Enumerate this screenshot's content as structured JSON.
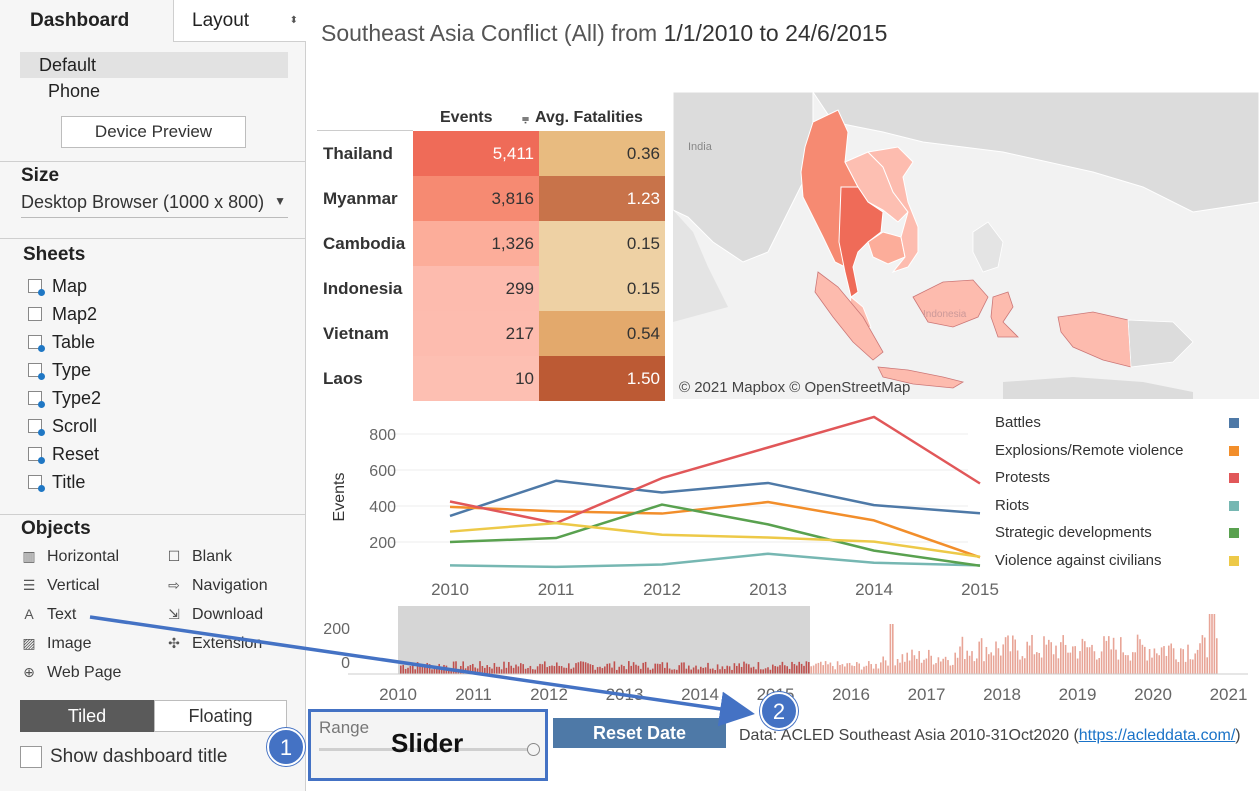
{
  "left_panel": {
    "tabs": {
      "dashboard": "Dashboard",
      "layout": "Layout",
      "layout_spinner": "⬍"
    },
    "devices": {
      "default": "Default",
      "phone": "Phone",
      "preview_button": "Device Preview"
    },
    "size": {
      "title": "Size",
      "value": "Desktop Browser (1000 x 800)",
      "arrow": "▼"
    },
    "sheets": {
      "title": "Sheets",
      "items": [
        "Map",
        "Map2",
        "Table",
        "Type",
        "Type2",
        "Scroll",
        "Reset",
        "Title"
      ]
    },
    "objects": {
      "title": "Objects",
      "items": [
        {
          "label": "Horizontal",
          "icon": "horizontal-container-icon",
          "glyph": "▥"
        },
        {
          "label": "Blank",
          "icon": "blank-icon",
          "glyph": "☐"
        },
        {
          "label": "Vertical",
          "icon": "vertical-container-icon",
          "glyph": "☰"
        },
        {
          "label": "Navigation",
          "icon": "navigation-icon",
          "glyph": "⇨"
        },
        {
          "label": "Text",
          "icon": "text-icon",
          "glyph": "A"
        },
        {
          "label": "Download",
          "icon": "download-icon",
          "glyph": "⇲"
        },
        {
          "label": "Image",
          "icon": "image-icon",
          "glyph": "▨"
        },
        {
          "label": "Extension",
          "icon": "extension-icon",
          "glyph": "✣"
        },
        {
          "label": "Web Page",
          "icon": "web-page-icon",
          "glyph": "⊕"
        }
      ]
    },
    "layout_mode": {
      "tiled": "Tiled",
      "floating": "Floating"
    },
    "show_title": "Show dashboard title"
  },
  "dashboard": {
    "title_prefix": "Southeast Asia Conflict (All) from ",
    "title_dates": "1/1/2010 to 24/6/2015",
    "table": {
      "headers": {
        "events": "Events",
        "fatalities": "Avg. Fatalities",
        "sort_icon": "⩦"
      },
      "rows": [
        {
          "country": "Thailand",
          "events": "5,411",
          "fatalities": "0.36",
          "ev_color": "#ef6b58",
          "fa_color": "#e8bb80",
          "ev_light": true,
          "fa_light": false
        },
        {
          "country": "Myanmar",
          "events": "3,816",
          "fatalities": "1.23",
          "ev_color": "#f68a72",
          "fa_color": "#c8734a",
          "ev_light": false,
          "fa_light": true
        },
        {
          "country": "Cambodia",
          "events": "1,326",
          "fatalities": "0.15",
          "ev_color": "#fcad9a",
          "fa_color": "#eed1a4",
          "ev_light": false,
          "fa_light": false
        },
        {
          "country": "Indonesia",
          "events": "299",
          "fatalities": "0.15",
          "ev_color": "#fdbbae",
          "fa_color": "#eed1a4",
          "ev_light": false,
          "fa_light": false
        },
        {
          "country": "Vietnam",
          "events": "217",
          "fatalities": "0.54",
          "ev_color": "#fdbcaf",
          "fa_color": "#e3a96c",
          "ev_light": false,
          "fa_light": false
        },
        {
          "country": "Laos",
          "events": "10",
          "fatalities": "1.50",
          "ev_color": "#fdbfb2",
          "fa_color": "#bc5a34",
          "ev_light": false,
          "fa_light": true
        }
      ]
    },
    "map": {
      "credit": "© 2021 Mapbox © OpenStreetMap",
      "labels": {
        "india": "India",
        "indonesia": "Indonesia"
      }
    },
    "timeline_ticks": [
      "2010",
      "2011",
      "2012",
      "2013",
      "2014",
      "2015",
      "2016",
      "2017",
      "2018",
      "2019",
      "2020",
      "2021"
    ],
    "timeline_yticks": [
      "200",
      "0"
    ],
    "range": {
      "label": "Range",
      "annotation": "Slider"
    },
    "reset_button": "Reset Date",
    "data_source": {
      "text": "Data: ACLED Southeast Asia 2010-31Oct2020 (",
      "link": "https://acleddata.com/",
      "close": ")"
    },
    "callouts": [
      "1",
      "2"
    ],
    "colors": {
      "accent_blue": "#4472c4",
      "reset_button": "#4e79a7"
    }
  },
  "chart_data": {
    "type": "line",
    "title": "",
    "xlabel": "",
    "ylabel": "Events",
    "x": [
      "2010",
      "2011",
      "2012",
      "2013",
      "2014",
      "2015"
    ],
    "yticks": [
      200,
      400,
      600,
      800
    ],
    "ylim": [
      0,
      900
    ],
    "grid": true,
    "legend_position": "right",
    "series": [
      {
        "name": "Battles",
        "color": "#4e79a7",
        "values": [
          345,
          540,
          475,
          528,
          405,
          360
        ]
      },
      {
        "name": "Explosions/Remote violence",
        "color": "#f28e2b",
        "values": [
          395,
          370,
          358,
          422,
          320,
          115
        ]
      },
      {
        "name": "Protests",
        "color": "#e15759",
        "values": [
          425,
          305,
          555,
          725,
          895,
          525
        ]
      },
      {
        "name": "Riots",
        "color": "#76b7b2",
        "values": [
          70,
          62,
          75,
          135,
          85,
          70
        ]
      },
      {
        "name": "Strategic developments",
        "color": "#59a14f",
        "values": [
          200,
          222,
          408,
          298,
          152,
          68
        ]
      },
      {
        "name": "Violence against civilians",
        "color": "#edc948",
        "values": [
          258,
          305,
          240,
          225,
          202,
          118
        ]
      }
    ]
  }
}
